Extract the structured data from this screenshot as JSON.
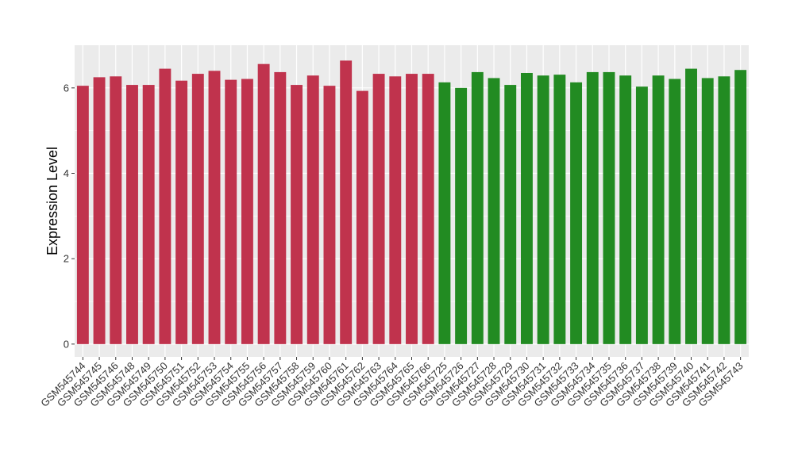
{
  "chart_data": {
    "type": "bar",
    "title": "",
    "xlabel": "",
    "ylabel": "Expression Level",
    "ylim": [
      -0.3,
      7.0
    ],
    "yticks": [
      0,
      2,
      4,
      6
    ],
    "grid": true,
    "legend": "none",
    "categories": [
      "GSM545744",
      "GSM545745",
      "GSM545746",
      "GSM545748",
      "GSM545749",
      "GSM545750",
      "GSM545751",
      "GSM545752",
      "GSM545753",
      "GSM545754",
      "GSM545755",
      "GSM545756",
      "GSM545757",
      "GSM545758",
      "GSM545759",
      "GSM545760",
      "GSM545761",
      "GSM545762",
      "GSM545763",
      "GSM545764",
      "GSM545765",
      "GSM545766",
      "GSM545725",
      "GSM545726",
      "GSM545727",
      "GSM545728",
      "GSM545729",
      "GSM545730",
      "GSM545731",
      "GSM545732",
      "GSM545733",
      "GSM545734",
      "GSM545735",
      "GSM545736",
      "GSM545737",
      "GSM545738",
      "GSM545739",
      "GSM545740",
      "GSM545741",
      "GSM545742",
      "GSM545743"
    ],
    "values": [
      6.05,
      6.25,
      6.27,
      6.07,
      6.07,
      6.45,
      6.17,
      6.33,
      6.4,
      6.19,
      6.21,
      6.56,
      6.37,
      6.07,
      6.29,
      6.05,
      6.64,
      5.93,
      6.33,
      6.27,
      6.33,
      6.33,
      6.13,
      6.0,
      6.37,
      6.23,
      6.07,
      6.35,
      6.29,
      6.31,
      6.13,
      6.37,
      6.37,
      6.29,
      6.03,
      6.29,
      6.21,
      6.45,
      6.23,
      6.27,
      6.42
    ],
    "groups": [
      {
        "count": 22,
        "color": "#c0334d"
      },
      {
        "count": 19,
        "color": "#228b22"
      }
    ],
    "panel_background": "#ebebeb",
    "grid_color": "#ffffff"
  }
}
